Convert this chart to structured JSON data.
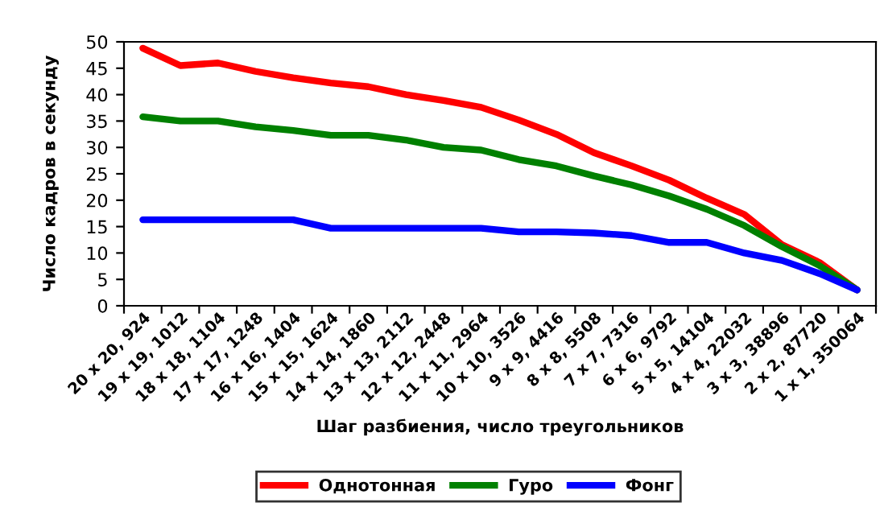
{
  "chart_data": {
    "type": "line",
    "xlabel": "Шаг разбиения, число треугольников",
    "ylabel": "Число кадров в секунду",
    "categories": [
      "20 x 20, 924",
      "19 x 19, 1012",
      "18 x 18, 1104",
      "17 x 17, 1248",
      "16 x 16, 1404",
      "15 x 15, 1624",
      "14 x 14, 1860",
      "13 x 13, 2112",
      "12 x 12, 2448",
      "11 x 11, 2964",
      "10 x 10, 3526",
      "9 x 9, 4416",
      "8 x 8, 5508",
      "7 x 7, 7316",
      "6 x 6, 9792",
      "5 x 5, 14104",
      "4 x 4, 22032",
      "3 x 3, 38896",
      "2 x 2, 87720",
      "1 x 1, 350064"
    ],
    "series": [
      {
        "name": "Однотонная",
        "color": "#ff0000",
        "values": [
          48.8,
          45.5,
          46,
          44.4,
          43.2,
          42.2,
          41.5,
          40,
          38.9,
          37.6,
          35.2,
          32.5,
          29,
          26.5,
          23.8,
          20.4,
          17.3,
          11.6,
          8.2,
          3
        ]
      },
      {
        "name": "Гуро",
        "color": "#008000",
        "values": [
          35.8,
          35,
          35,
          33.9,
          33.2,
          32.3,
          32.3,
          31.4,
          30,
          29.5,
          27.7,
          26.5,
          24.6,
          22.9,
          20.8,
          18.3,
          15.2,
          11.2,
          7.6,
          3
        ]
      },
      {
        "name": "Фонг",
        "color": "#0000ff",
        "values": [
          16.3,
          16.3,
          16.3,
          16.3,
          16.3,
          14.7,
          14.7,
          14.7,
          14.7,
          14.7,
          14,
          14,
          13.8,
          13.3,
          12,
          12,
          10,
          8.6,
          6.1,
          3
        ]
      }
    ],
    "ylim": [
      0,
      50
    ],
    "yticks": [
      0,
      5,
      10,
      15,
      20,
      25,
      30,
      35,
      40,
      45,
      50
    ],
    "grid": false,
    "legend": "bottom",
    "marker": "none",
    "line_style": "solid"
  }
}
